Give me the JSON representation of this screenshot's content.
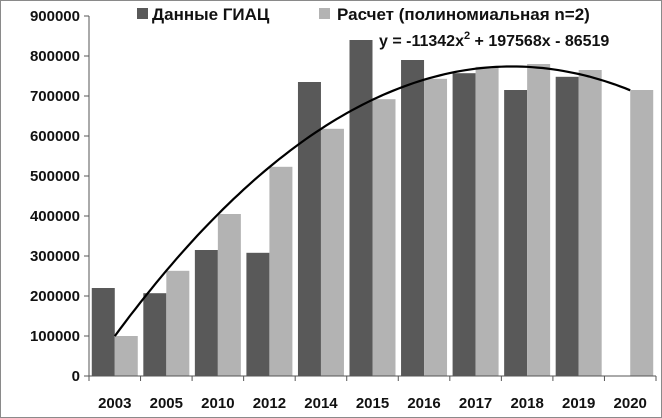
{
  "chart_data": {
    "type": "bar",
    "categories": [
      "2003",
      "2005",
      "2010",
      "2012",
      "2014",
      "2015",
      "2016",
      "2017",
      "2018",
      "2019",
      "2020"
    ],
    "ylim": [
      0,
      900000
    ],
    "yticks": [
      0,
      100000,
      200000,
      300000,
      400000,
      500000,
      600000,
      700000,
      800000,
      900000
    ],
    "ytick_labels": [
      "0",
      "100000",
      "200000",
      "300000",
      "400000",
      "500000",
      "600000",
      "700000",
      "800000",
      "900000"
    ],
    "series": [
      {
        "name": "Данные ГИАЦ",
        "color": "#595959",
        "values": [
          220000,
          207000,
          315000,
          308000,
          735000,
          840000,
          790000,
          757000,
          715000,
          748000,
          null
        ]
      },
      {
        "name": "Расчет (полиномиальная n=2)",
        "color": "#b3b3b3",
        "values": [
          100000,
          263000,
          405000,
          523000,
          618000,
          692000,
          743000,
          773000,
          780000,
          765000,
          715000
        ]
      }
    ],
    "trendline": {
      "type": "polynomial",
      "order": 2,
      "coefficients": [
        -11342,
        197568,
        -86519
      ],
      "equation_prefix": "y = -11342x",
      "equation_exponent": "2",
      "equation_suffix": " + 197568x - 86519",
      "color": "#000000"
    },
    "legend_position": "top",
    "grid": false
  }
}
